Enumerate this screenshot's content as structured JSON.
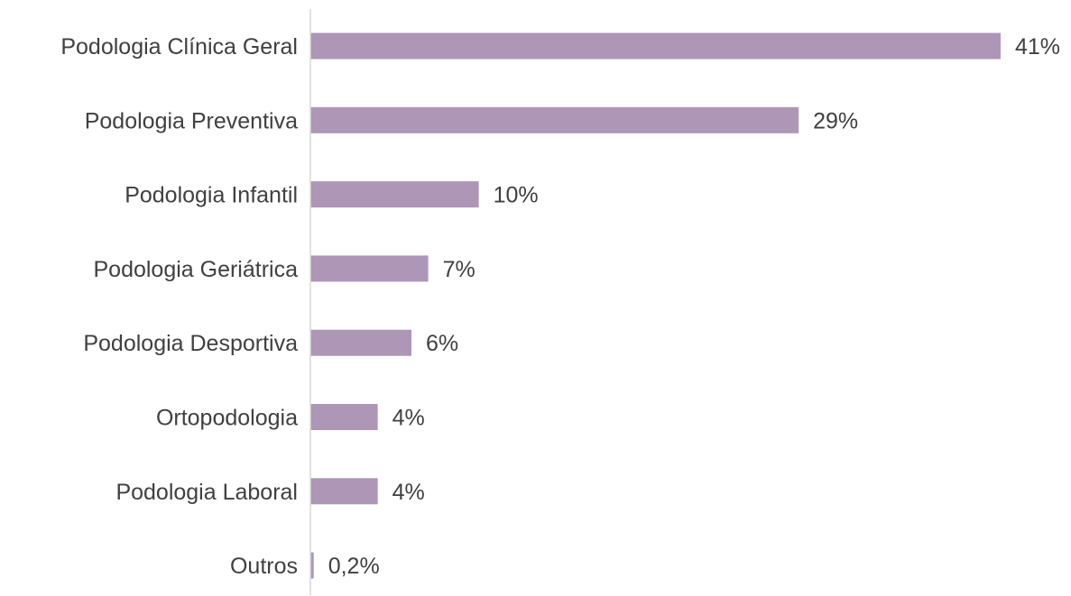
{
  "chart_data": {
    "type": "bar",
    "orientation": "horizontal",
    "categories": [
      "Podologia Clínica Geral",
      "Podologia Preventiva",
      "Podologia Infantil",
      "Podologia Geriátrica",
      "Podologia Desportiva",
      "Ortopodologia",
      "Podologia Laboral",
      "Outros"
    ],
    "values": [
      41,
      29,
      10,
      7,
      6,
      4,
      4,
      0.2
    ],
    "value_labels": [
      "41%",
      "29%",
      "10%",
      "7%",
      "6%",
      "4%",
      "4%",
      "0,2%"
    ],
    "unit": "%",
    "title": "",
    "xlabel": "",
    "ylabel": "",
    "xlim": [
      0,
      41
    ],
    "grid": false,
    "legend": "none",
    "bar_color": "#ae96b7",
    "axis_color": "#d9d9d9",
    "text_color": "#404040"
  }
}
